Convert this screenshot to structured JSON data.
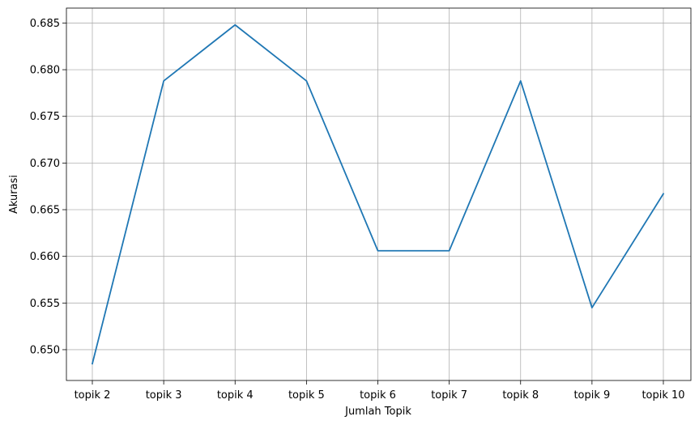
{
  "chart_data": {
    "type": "line",
    "title": "",
    "xlabel": "Jumlah Topik",
    "ylabel": "Akurasi",
    "categories": [
      "topik 2",
      "topik 3",
      "topik 4",
      "topik 5",
      "topik 6",
      "topik 7",
      "topik 8",
      "topik 9",
      "topik 10"
    ],
    "series": [
      {
        "values": [
          0.6485,
          0.6788,
          0.6848,
          0.6788,
          0.6606,
          0.6606,
          0.6788,
          0.6545,
          0.6667
        ],
        "color": "#1f77b4"
      }
    ],
    "ylim": [
      0.6467,
      0.6866
    ],
    "yticks": [
      "0.650",
      "0.655",
      "0.660",
      "0.665",
      "0.670",
      "0.675",
      "0.680",
      "0.685"
    ],
    "ytick_values": [
      0.65,
      0.655,
      0.66,
      0.665,
      0.67,
      0.675,
      0.68,
      0.685
    ],
    "grid": true,
    "legend": "none"
  }
}
